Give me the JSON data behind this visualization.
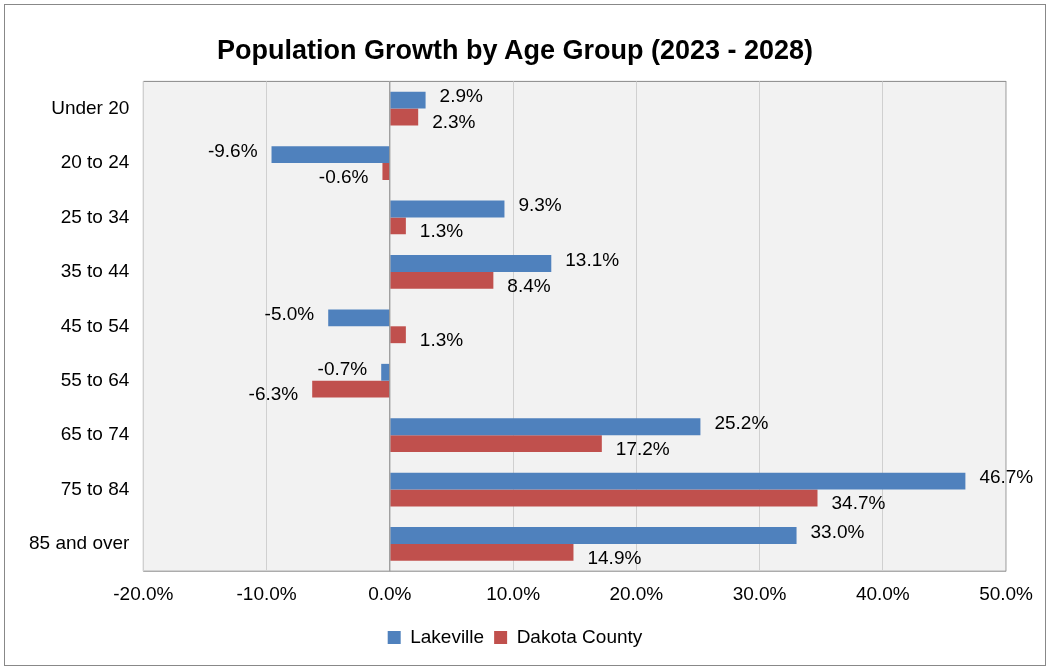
{
  "chart_data": {
    "type": "bar",
    "orientation": "horizontal",
    "title": "Population Growth by Age Group (2023 - 2028)",
    "categories": [
      "Under 20",
      "20 to 24",
      "25 to 34",
      "35 to 44",
      "45 to 54",
      "55 to 64",
      "65 to 74",
      "75 to 84",
      "85 and over"
    ],
    "series": [
      {
        "name": "Lakeville",
        "color": "#4f81bd",
        "values": [
          2.9,
          -9.6,
          9.3,
          13.1,
          -5.0,
          -0.7,
          25.2,
          46.7,
          33.0
        ],
        "value_labels": [
          "2.9%",
          "-9.6%",
          "9.3%",
          "13.1%",
          "-5.0%",
          "-0.7%",
          "25.2%",
          "46.7%",
          "33.0%"
        ]
      },
      {
        "name": "Dakota County",
        "color": "#c0504d",
        "values": [
          2.3,
          -0.6,
          1.3,
          8.4,
          1.3,
          -6.3,
          17.2,
          34.7,
          14.9
        ],
        "value_labels": [
          "2.3%",
          "-0.6%",
          "1.3%",
          "8.4%",
          "1.3%",
          "-6.3%",
          "17.2%",
          "34.7%",
          "14.9%"
        ]
      }
    ],
    "xlim": [
      -20,
      50
    ],
    "xticks": [
      {
        "value": -20,
        "label": "-20.0%"
      },
      {
        "value": -10,
        "label": "-10.0%"
      },
      {
        "value": 0,
        "label": "0.0%"
      },
      {
        "value": 10,
        "label": "10.0%"
      },
      {
        "value": 20,
        "label": "20.0%"
      },
      {
        "value": 30,
        "label": "30.0%"
      },
      {
        "value": 40,
        "label": "40.0%"
      },
      {
        "value": 50,
        "label": "50.0%"
      }
    ],
    "grid": "x",
    "legend": "bottom"
  }
}
